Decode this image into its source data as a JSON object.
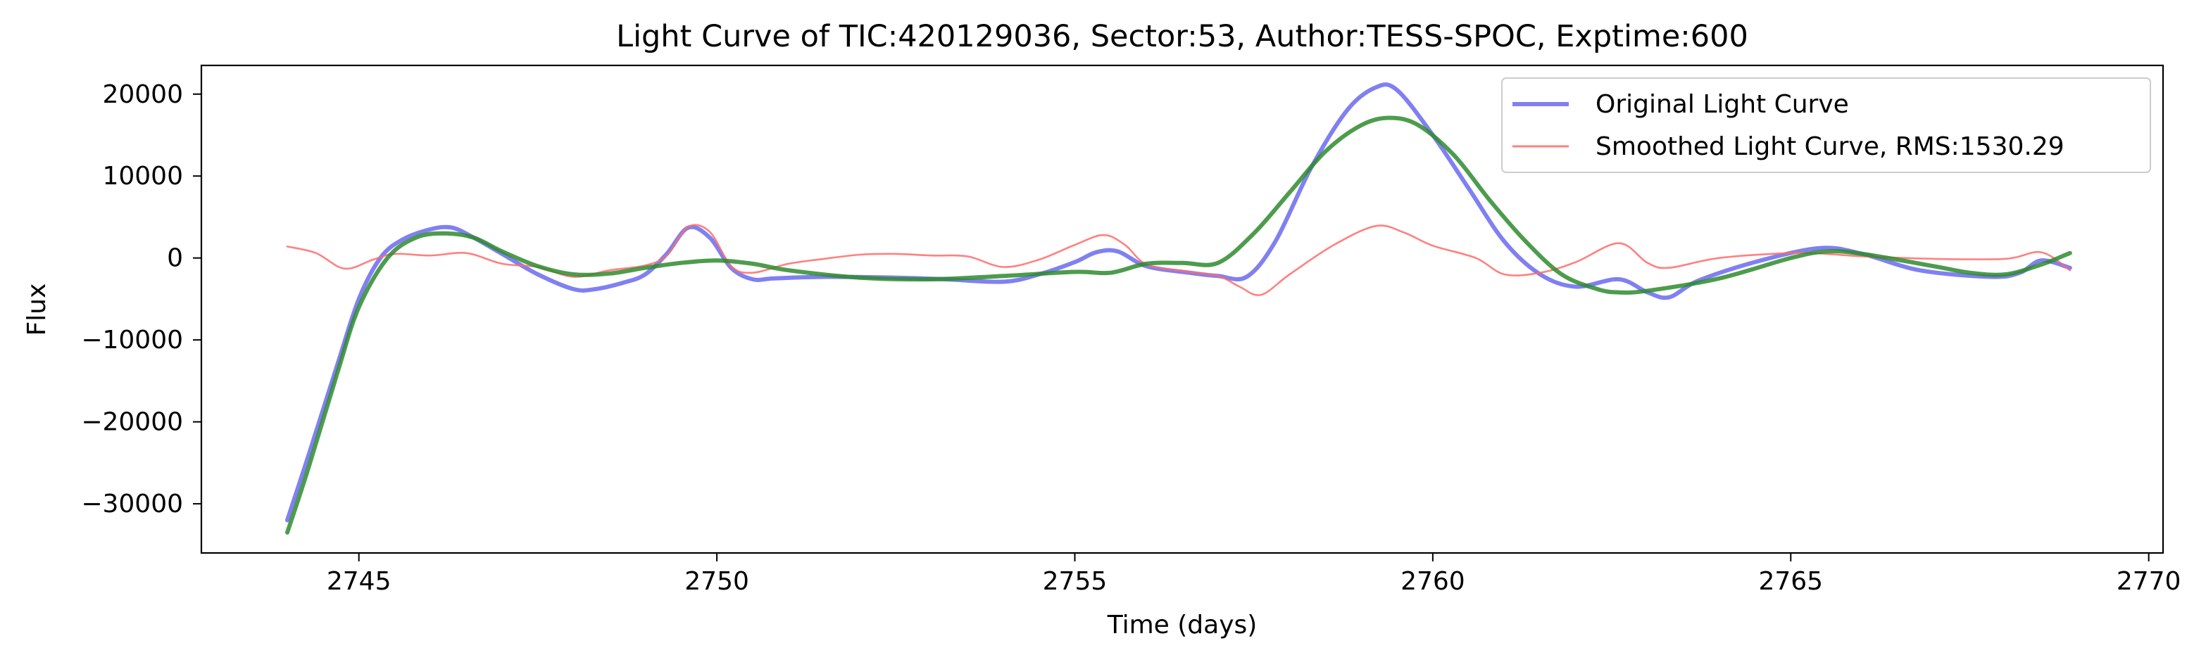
{
  "chart_data": {
    "type": "line",
    "title": "Light Curve of TIC:420129036, Sector:53, Author:TESS-SPOC, Exptime:600",
    "xlabel": "Time (days)",
    "ylabel": "Flux",
    "xlim": [
      2742.8,
      2770.2
    ],
    "ylim": [
      -36000,
      23500
    ],
    "xticks": [
      2745,
      2750,
      2755,
      2760,
      2765,
      2770
    ],
    "yticks": [
      -30000,
      -20000,
      -10000,
      0,
      10000,
      20000
    ],
    "grid": false,
    "legend_position": "upper right",
    "series": [
      {
        "name": "Original Light Curve",
        "color": "#5555ee",
        "style": "thick-translucent",
        "points": [
          [
            2744.0,
            -32000
          ],
          [
            2744.3,
            -24000
          ],
          [
            2744.7,
            -13000
          ],
          [
            2745.0,
            -5000
          ],
          [
            2745.3,
            0
          ],
          [
            2745.6,
            2200
          ],
          [
            2746.0,
            3500
          ],
          [
            2746.3,
            3700
          ],
          [
            2746.6,
            2500
          ],
          [
            2747.0,
            500
          ],
          [
            2747.5,
            -2000
          ],
          [
            2748.0,
            -3800
          ],
          [
            2748.3,
            -3800
          ],
          [
            2748.7,
            -3000
          ],
          [
            2749.0,
            -2000
          ],
          [
            2749.3,
            500
          ],
          [
            2749.6,
            3700
          ],
          [
            2749.9,
            2500
          ],
          [
            2750.2,
            -1200
          ],
          [
            2750.5,
            -2600
          ],
          [
            2750.8,
            -2500
          ],
          [
            2751.5,
            -2300
          ],
          [
            2752.5,
            -2400
          ],
          [
            2753.2,
            -2600
          ],
          [
            2754.0,
            -2900
          ],
          [
            2754.5,
            -2000
          ],
          [
            2755.0,
            -500
          ],
          [
            2755.3,
            700
          ],
          [
            2755.6,
            800
          ],
          [
            2756.0,
            -1000
          ],
          [
            2756.6,
            -1800
          ],
          [
            2757.0,
            -2200
          ],
          [
            2757.4,
            -2300
          ],
          [
            2757.8,
            2000
          ],
          [
            2758.3,
            11000
          ],
          [
            2758.8,
            18000
          ],
          [
            2759.2,
            20800
          ],
          [
            2759.5,
            20500
          ],
          [
            2760.0,
            15000
          ],
          [
            2760.5,
            8500
          ],
          [
            2761.0,
            2000
          ],
          [
            2761.5,
            -2000
          ],
          [
            2762.0,
            -3500
          ],
          [
            2762.6,
            -2600
          ],
          [
            2763.0,
            -4200
          ],
          [
            2763.3,
            -4800
          ],
          [
            2763.7,
            -2800
          ],
          [
            2764.5,
            -500
          ],
          [
            2765.4,
            1200
          ],
          [
            2766.0,
            500
          ],
          [
            2766.8,
            -1500
          ],
          [
            2767.8,
            -2300
          ],
          [
            2768.2,
            -1800
          ],
          [
            2768.5,
            -300
          ],
          [
            2768.9,
            -1200
          ]
        ]
      },
      {
        "name": "Smoothed Light Curve, RMS:1530.29",
        "color": "#ff6b6b",
        "style": "thin",
        "points": [
          [
            2744.0,
            1400
          ],
          [
            2744.4,
            600
          ],
          [
            2744.8,
            -1300
          ],
          [
            2745.2,
            -200
          ],
          [
            2745.5,
            500
          ],
          [
            2746.0,
            300
          ],
          [
            2746.5,
            600
          ],
          [
            2747.0,
            -700
          ],
          [
            2747.5,
            -1100
          ],
          [
            2748.0,
            -2300
          ],
          [
            2748.5,
            -1500
          ],
          [
            2749.0,
            -900
          ],
          [
            2749.3,
            300
          ],
          [
            2749.6,
            3800
          ],
          [
            2749.9,
            3200
          ],
          [
            2750.2,
            -1000
          ],
          [
            2750.5,
            -1800
          ],
          [
            2751.0,
            -700
          ],
          [
            2751.5,
            -100
          ],
          [
            2752.0,
            400
          ],
          [
            2752.5,
            500
          ],
          [
            2753.0,
            300
          ],
          [
            2753.5,
            200
          ],
          [
            2754.0,
            -1100
          ],
          [
            2754.5,
            -200
          ],
          [
            2755.0,
            1600
          ],
          [
            2755.4,
            2800
          ],
          [
            2755.7,
            1600
          ],
          [
            2756.0,
            -800
          ],
          [
            2756.5,
            -1600
          ],
          [
            2757.0,
            -2200
          ],
          [
            2757.3,
            -3500
          ],
          [
            2757.6,
            -4500
          ],
          [
            2758.0,
            -2000
          ],
          [
            2758.6,
            1500
          ],
          [
            2759.2,
            3900
          ],
          [
            2759.6,
            3100
          ],
          [
            2760.0,
            1500
          ],
          [
            2760.6,
            0
          ],
          [
            2761.0,
            -2000
          ],
          [
            2761.5,
            -1800
          ],
          [
            2762.0,
            -500
          ],
          [
            2762.6,
            1800
          ],
          [
            2763.0,
            -600
          ],
          [
            2763.3,
            -1200
          ],
          [
            2764.0,
            0
          ],
          [
            2765.0,
            600
          ],
          [
            2765.5,
            500
          ],
          [
            2766.0,
            200
          ],
          [
            2767.0,
            -100
          ],
          [
            2768.0,
            -100
          ],
          [
            2768.5,
            700
          ],
          [
            2768.9,
            -1500
          ]
        ]
      },
      {
        "name": "",
        "color": "#2e8b2e",
        "style": "medium",
        "points": [
          [
            2744.0,
            -33500
          ],
          [
            2744.3,
            -25500
          ],
          [
            2744.7,
            -14000
          ],
          [
            2745.0,
            -6000
          ],
          [
            2745.4,
            0
          ],
          [
            2745.8,
            2500
          ],
          [
            2746.2,
            3000
          ],
          [
            2746.6,
            2500
          ],
          [
            2747.0,
            800
          ],
          [
            2747.5,
            -1000
          ],
          [
            2748.0,
            -2000
          ],
          [
            2748.5,
            -1900
          ],
          [
            2749.0,
            -1200
          ],
          [
            2749.5,
            -600
          ],
          [
            2750.0,
            -300
          ],
          [
            2750.5,
            -700
          ],
          [
            2751.0,
            -1500
          ],
          [
            2752.0,
            -2400
          ],
          [
            2753.0,
            -2600
          ],
          [
            2754.0,
            -2200
          ],
          [
            2755.0,
            -1700
          ],
          [
            2755.5,
            -1800
          ],
          [
            2756.0,
            -700
          ],
          [
            2756.5,
            -600
          ],
          [
            2757.0,
            -600
          ],
          [
            2757.5,
            3000
          ],
          [
            2758.0,
            8000
          ],
          [
            2758.5,
            13000
          ],
          [
            2759.0,
            16200
          ],
          [
            2759.4,
            17100
          ],
          [
            2759.8,
            16200
          ],
          [
            2760.3,
            12500
          ],
          [
            2760.8,
            7000
          ],
          [
            2761.3,
            2000
          ],
          [
            2761.8,
            -2000
          ],
          [
            2762.3,
            -3800
          ],
          [
            2762.6,
            -4200
          ],
          [
            2763.0,
            -4000
          ],
          [
            2764.0,
            -2500
          ],
          [
            2765.0,
            0
          ],
          [
            2765.5,
            800
          ],
          [
            2766.0,
            500
          ],
          [
            2767.0,
            -1000
          ],
          [
            2767.5,
            -1800
          ],
          [
            2768.0,
            -2000
          ],
          [
            2768.5,
            -800
          ],
          [
            2768.9,
            600
          ]
        ]
      }
    ]
  }
}
